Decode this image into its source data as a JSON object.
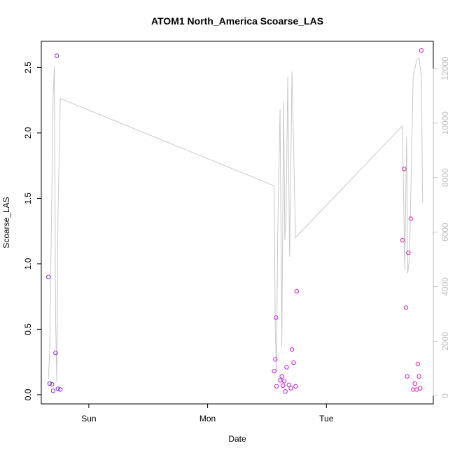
{
  "chart_data": {
    "type": "scatter",
    "title": "ATOM1 North_America Scoarse_LAS",
    "xlabel": "Date",
    "ylabel": "Scoarse_LAS",
    "x_ticks": [
      {
        "label": "Sun",
        "value": 1.0
      },
      {
        "label": "Mon",
        "value": 2.0
      },
      {
        "label": "Tue",
        "value": 3.0
      }
    ],
    "x_range": [
      0.6,
      3.9
    ],
    "y_left": {
      "range": [
        -0.07,
        2.7
      ],
      "ticks": [
        0.0,
        0.5,
        1.0,
        1.5,
        2.0,
        2.5
      ],
      "tick_labels": [
        "0.0",
        "0.5",
        "1.0",
        "1.5",
        "2.0",
        "2.5"
      ]
    },
    "y_right": {
      "range": [
        -300,
        13000
      ],
      "ticks": [
        0,
        2000,
        4000,
        6000,
        8000,
        10000,
        12000
      ],
      "tick_labels": [
        "0",
        "2000",
        "4000",
        "6000",
        "8000",
        "10000",
        "12000"
      ]
    },
    "points": [
      {
        "x": 0.66,
        "y": 0.9,
        "color": "#8a2be2"
      },
      {
        "x": 0.67,
        "y": 0.085,
        "color": "#8a2be2"
      },
      {
        "x": 0.69,
        "y": 0.08,
        "color": "#8a2be2"
      },
      {
        "x": 0.7,
        "y": 0.03,
        "color": "#8a2be2"
      },
      {
        "x": 0.72,
        "y": 0.32,
        "color": "#8a2be2"
      },
      {
        "x": 0.73,
        "y": 2.59,
        "color": "#8a2be2"
      },
      {
        "x": 0.74,
        "y": 0.045,
        "color": "#8a2be2"
      },
      {
        "x": 0.76,
        "y": 0.04,
        "color": "#8a2be2"
      },
      {
        "x": 2.56,
        "y": 0.18,
        "color": "#c020e0"
      },
      {
        "x": 2.57,
        "y": 0.27,
        "color": "#c020e0"
      },
      {
        "x": 2.575,
        "y": 0.59,
        "color": "#c020e0"
      },
      {
        "x": 2.58,
        "y": 0.065,
        "color": "#c020e0"
      },
      {
        "x": 2.61,
        "y": 0.11,
        "color": "#c020e0"
      },
      {
        "x": 2.625,
        "y": 0.14,
        "color": "#c020e0"
      },
      {
        "x": 2.635,
        "y": 0.07,
        "color": "#c020e0"
      },
      {
        "x": 2.645,
        "y": 0.105,
        "color": "#c020e0"
      },
      {
        "x": 2.655,
        "y": 0.025,
        "color": "#c020e0"
      },
      {
        "x": 2.665,
        "y": 0.21,
        "color": "#c020e0"
      },
      {
        "x": 2.685,
        "y": 0.075,
        "color": "#c020e0"
      },
      {
        "x": 2.7,
        "y": 0.05,
        "color": "#c020e0"
      },
      {
        "x": 2.71,
        "y": 0.345,
        "color": "#c020e0"
      },
      {
        "x": 2.725,
        "y": 0.245,
        "color": "#c020e0"
      },
      {
        "x": 2.74,
        "y": 0.065,
        "color": "#c020e0"
      },
      {
        "x": 2.75,
        "y": 0.79,
        "color": "#c020e0"
      },
      {
        "x": 3.64,
        "y": 1.18,
        "color": "#e020b0"
      },
      {
        "x": 3.655,
        "y": 1.725,
        "color": "#e020b0"
      },
      {
        "x": 3.67,
        "y": 0.665,
        "color": "#e020b0"
      },
      {
        "x": 3.68,
        "y": 0.14,
        "color": "#e020b0"
      },
      {
        "x": 3.69,
        "y": 1.085,
        "color": "#e020b0"
      },
      {
        "x": 3.71,
        "y": 1.345,
        "color": "#e020b0"
      },
      {
        "x": 3.73,
        "y": 0.04,
        "color": "#e020b0"
      },
      {
        "x": 3.745,
        "y": 0.085,
        "color": "#e020b0"
      },
      {
        "x": 3.76,
        "y": 0.04,
        "color": "#e020b0"
      },
      {
        "x": 3.77,
        "y": 0.235,
        "color": "#e020b0"
      },
      {
        "x": 3.78,
        "y": 0.14,
        "color": "#e020b0"
      },
      {
        "x": 3.79,
        "y": 0.05,
        "color": "#e020b0"
      },
      {
        "x": 3.8,
        "y": 2.63,
        "color": "#e020b0"
      }
    ],
    "line_right_axis": [
      [
        0.66,
        600
      ],
      [
        0.67,
        1600
      ],
      [
        0.7,
        11000
      ],
      [
        0.71,
        12100
      ],
      [
        0.72,
        2900
      ],
      [
        0.73,
        500
      ],
      [
        0.74,
        6600
      ],
      [
        0.76,
        10900
      ],
      [
        2.56,
        7700
      ],
      [
        2.57,
        2400
      ],
      [
        2.58,
        900
      ],
      [
        2.59,
        5900
      ],
      [
        2.61,
        10500
      ],
      [
        2.625,
        1800
      ],
      [
        2.64,
        10800
      ],
      [
        2.65,
        5700
      ],
      [
        2.66,
        6500
      ],
      [
        2.675,
        11700
      ],
      [
        2.69,
        5100
      ],
      [
        2.71,
        11900
      ],
      [
        2.74,
        5800
      ],
      [
        3.64,
        9900
      ],
      [
        3.66,
        4600
      ],
      [
        3.675,
        9500
      ],
      [
        3.685,
        4500
      ],
      [
        3.7,
        5100
      ],
      [
        3.73,
        11700
      ],
      [
        3.76,
        12300
      ],
      [
        3.78,
        12400
      ],
      [
        3.8,
        11700
      ],
      [
        3.81,
        7100
      ]
    ],
    "line_color": "#c8c8c8"
  }
}
